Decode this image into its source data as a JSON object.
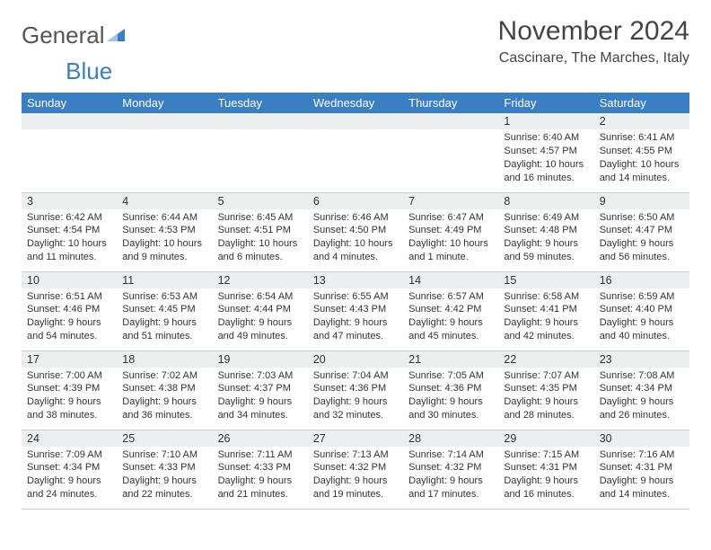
{
  "logo": {
    "text1": "General",
    "text2": "Blue"
  },
  "title": "November 2024",
  "location": "Cascinare, The Marches, Italy",
  "colors": {
    "header_bg": "#3a7fc4",
    "header_text": "#ffffff",
    "daynum_bg": "#eceeef",
    "border": "#c8d0d6",
    "text": "#333333"
  },
  "weekdays": [
    "Sunday",
    "Monday",
    "Tuesday",
    "Wednesday",
    "Thursday",
    "Friday",
    "Saturday"
  ],
  "weeks": [
    [
      {
        "n": "",
        "sr": "",
        "ss": "",
        "dl": ""
      },
      {
        "n": "",
        "sr": "",
        "ss": "",
        "dl": ""
      },
      {
        "n": "",
        "sr": "",
        "ss": "",
        "dl": ""
      },
      {
        "n": "",
        "sr": "",
        "ss": "",
        "dl": ""
      },
      {
        "n": "",
        "sr": "",
        "ss": "",
        "dl": ""
      },
      {
        "n": "1",
        "sr": "Sunrise: 6:40 AM",
        "ss": "Sunset: 4:57 PM",
        "dl": "Daylight: 10 hours and 16 minutes."
      },
      {
        "n": "2",
        "sr": "Sunrise: 6:41 AM",
        "ss": "Sunset: 4:55 PM",
        "dl": "Daylight: 10 hours and 14 minutes."
      }
    ],
    [
      {
        "n": "3",
        "sr": "Sunrise: 6:42 AM",
        "ss": "Sunset: 4:54 PM",
        "dl": "Daylight: 10 hours and 11 minutes."
      },
      {
        "n": "4",
        "sr": "Sunrise: 6:44 AM",
        "ss": "Sunset: 4:53 PM",
        "dl": "Daylight: 10 hours and 9 minutes."
      },
      {
        "n": "5",
        "sr": "Sunrise: 6:45 AM",
        "ss": "Sunset: 4:51 PM",
        "dl": "Daylight: 10 hours and 6 minutes."
      },
      {
        "n": "6",
        "sr": "Sunrise: 6:46 AM",
        "ss": "Sunset: 4:50 PM",
        "dl": "Daylight: 10 hours and 4 minutes."
      },
      {
        "n": "7",
        "sr": "Sunrise: 6:47 AM",
        "ss": "Sunset: 4:49 PM",
        "dl": "Daylight: 10 hours and 1 minute."
      },
      {
        "n": "8",
        "sr": "Sunrise: 6:49 AM",
        "ss": "Sunset: 4:48 PM",
        "dl": "Daylight: 9 hours and 59 minutes."
      },
      {
        "n": "9",
        "sr": "Sunrise: 6:50 AM",
        "ss": "Sunset: 4:47 PM",
        "dl": "Daylight: 9 hours and 56 minutes."
      }
    ],
    [
      {
        "n": "10",
        "sr": "Sunrise: 6:51 AM",
        "ss": "Sunset: 4:46 PM",
        "dl": "Daylight: 9 hours and 54 minutes."
      },
      {
        "n": "11",
        "sr": "Sunrise: 6:53 AM",
        "ss": "Sunset: 4:45 PM",
        "dl": "Daylight: 9 hours and 51 minutes."
      },
      {
        "n": "12",
        "sr": "Sunrise: 6:54 AM",
        "ss": "Sunset: 4:44 PM",
        "dl": "Daylight: 9 hours and 49 minutes."
      },
      {
        "n": "13",
        "sr": "Sunrise: 6:55 AM",
        "ss": "Sunset: 4:43 PM",
        "dl": "Daylight: 9 hours and 47 minutes."
      },
      {
        "n": "14",
        "sr": "Sunrise: 6:57 AM",
        "ss": "Sunset: 4:42 PM",
        "dl": "Daylight: 9 hours and 45 minutes."
      },
      {
        "n": "15",
        "sr": "Sunrise: 6:58 AM",
        "ss": "Sunset: 4:41 PM",
        "dl": "Daylight: 9 hours and 42 minutes."
      },
      {
        "n": "16",
        "sr": "Sunrise: 6:59 AM",
        "ss": "Sunset: 4:40 PM",
        "dl": "Daylight: 9 hours and 40 minutes."
      }
    ],
    [
      {
        "n": "17",
        "sr": "Sunrise: 7:00 AM",
        "ss": "Sunset: 4:39 PM",
        "dl": "Daylight: 9 hours and 38 minutes."
      },
      {
        "n": "18",
        "sr": "Sunrise: 7:02 AM",
        "ss": "Sunset: 4:38 PM",
        "dl": "Daylight: 9 hours and 36 minutes."
      },
      {
        "n": "19",
        "sr": "Sunrise: 7:03 AM",
        "ss": "Sunset: 4:37 PM",
        "dl": "Daylight: 9 hours and 34 minutes."
      },
      {
        "n": "20",
        "sr": "Sunrise: 7:04 AM",
        "ss": "Sunset: 4:36 PM",
        "dl": "Daylight: 9 hours and 32 minutes."
      },
      {
        "n": "21",
        "sr": "Sunrise: 7:05 AM",
        "ss": "Sunset: 4:36 PM",
        "dl": "Daylight: 9 hours and 30 minutes."
      },
      {
        "n": "22",
        "sr": "Sunrise: 7:07 AM",
        "ss": "Sunset: 4:35 PM",
        "dl": "Daylight: 9 hours and 28 minutes."
      },
      {
        "n": "23",
        "sr": "Sunrise: 7:08 AM",
        "ss": "Sunset: 4:34 PM",
        "dl": "Daylight: 9 hours and 26 minutes."
      }
    ],
    [
      {
        "n": "24",
        "sr": "Sunrise: 7:09 AM",
        "ss": "Sunset: 4:34 PM",
        "dl": "Daylight: 9 hours and 24 minutes."
      },
      {
        "n": "25",
        "sr": "Sunrise: 7:10 AM",
        "ss": "Sunset: 4:33 PM",
        "dl": "Daylight: 9 hours and 22 minutes."
      },
      {
        "n": "26",
        "sr": "Sunrise: 7:11 AM",
        "ss": "Sunset: 4:33 PM",
        "dl": "Daylight: 9 hours and 21 minutes."
      },
      {
        "n": "27",
        "sr": "Sunrise: 7:13 AM",
        "ss": "Sunset: 4:32 PM",
        "dl": "Daylight: 9 hours and 19 minutes."
      },
      {
        "n": "28",
        "sr": "Sunrise: 7:14 AM",
        "ss": "Sunset: 4:32 PM",
        "dl": "Daylight: 9 hours and 17 minutes."
      },
      {
        "n": "29",
        "sr": "Sunrise: 7:15 AM",
        "ss": "Sunset: 4:31 PM",
        "dl": "Daylight: 9 hours and 16 minutes."
      },
      {
        "n": "30",
        "sr": "Sunrise: 7:16 AM",
        "ss": "Sunset: 4:31 PM",
        "dl": "Daylight: 9 hours and 14 minutes."
      }
    ]
  ]
}
